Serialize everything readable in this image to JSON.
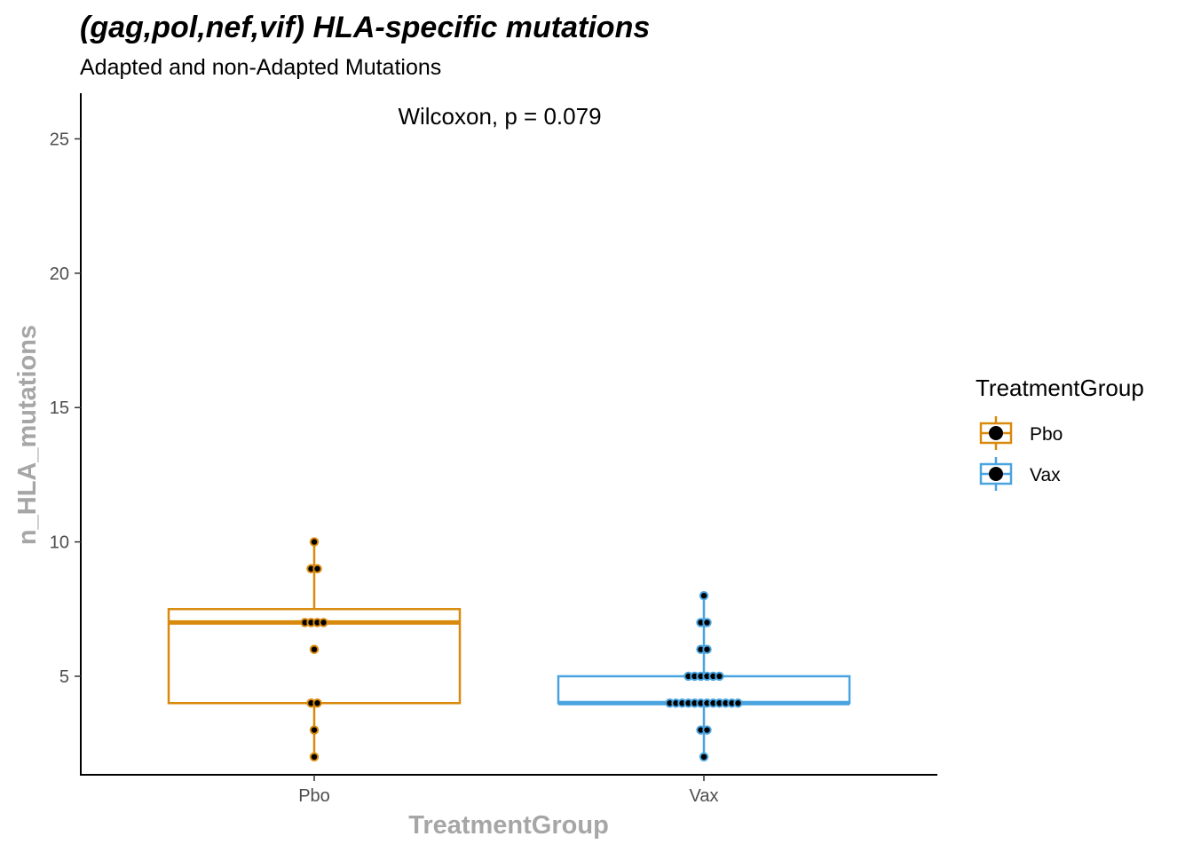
{
  "chart_data": {
    "type": "box",
    "title": "(gag,pol,nef,vif) HLA-specific mutations",
    "subtitle": "Adapted and non-Adapted Mutations",
    "xlabel": "TreatmentGroup",
    "ylabel": "n_HLA_mutations",
    "categories": [
      "Pbo",
      "Vax"
    ],
    "yticks": [
      5,
      10,
      15,
      20,
      25
    ],
    "ylim": [
      1.3,
      26.7
    ],
    "annotation": "Wilcoxon, p = 0.079",
    "legend": {
      "title": "TreatmentGroup",
      "position": "right",
      "entries": [
        "Pbo",
        "Vax"
      ]
    },
    "colors": {
      "Pbo": "#D9890B",
      "Vax": "#48A3DF"
    },
    "grid": false,
    "series": [
      {
        "name": "Pbo",
        "box": {
          "min": 2,
          "q1": 4,
          "median": 7,
          "q3": 7.5,
          "max": 10
        },
        "points": [
          2,
          3,
          4,
          4,
          6,
          7,
          7,
          7,
          7,
          9,
          9,
          10
        ]
      },
      {
        "name": "Vax",
        "box": {
          "min": 2,
          "q1": 4,
          "median": 4,
          "q3": 5,
          "max": 8
        },
        "points": [
          2,
          3,
          3,
          4,
          4,
          4,
          4,
          4,
          4,
          4,
          4,
          4,
          4,
          4,
          4,
          5,
          5,
          5,
          5,
          5,
          5,
          6,
          6,
          7,
          7,
          8
        ]
      }
    ]
  }
}
